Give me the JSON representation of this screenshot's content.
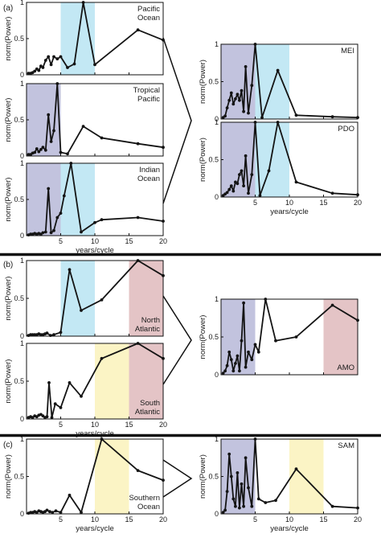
{
  "figure": {
    "panel_labels": [
      "(a)",
      "(b)",
      "(c)"
    ],
    "x_axis_title": "years/cycle",
    "y_axis_title": "norm(Power)",
    "x_ticks": [
      5,
      10,
      15,
      20
    ],
    "y_ticks": [
      0,
      0.5,
      1
    ],
    "band_colors": {
      "interannual": "#c2c3de",
      "decadal": "#c3e8f4",
      "bidecadal_yellow": "#fbf4c5",
      "multidecadal": "#e4c4c6"
    },
    "line_color": "#141414"
  },
  "chart_data": [
    {
      "id": "pacific-ocean",
      "type": "line",
      "panel_label": "(a)",
      "annotation": [
        "Pacific",
        "Ocean"
      ],
      "annotation_pos": "top",
      "xlim": [
        0,
        20
      ],
      "ylim": [
        0,
        1
      ],
      "show_x_labels": false,
      "bands": [
        {
          "range": [
            5,
            10
          ],
          "color": "decadal"
        }
      ],
      "x": [
        0.3,
        0.6,
        0.9,
        1.2,
        1.5,
        1.8,
        2.1,
        2.4,
        2.8,
        3.2,
        3.6,
        4.0,
        4.5,
        5.0,
        6.0,
        7.0,
        8.3,
        10.0,
        16.3,
        20.0
      ],
      "y": [
        0.02,
        0.02,
        0.03,
        0.05,
        0.08,
        0.06,
        0.12,
        0.1,
        0.2,
        0.25,
        0.14,
        0.25,
        0.22,
        0.25,
        0.1,
        0.15,
        1.0,
        0.14,
        0.62,
        0.48
      ]
    },
    {
      "id": "tropical-pacific",
      "type": "line",
      "annotation": [
        "Tropical",
        "Pacific"
      ],
      "annotation_pos": "top",
      "xlim": [
        0,
        20
      ],
      "ylim": [
        0,
        1
      ],
      "show_x_labels": false,
      "bands": [
        {
          "range": [
            0,
            5
          ],
          "color": "interannual"
        }
      ],
      "x": [
        0.3,
        0.6,
        0.9,
        1.2,
        1.5,
        1.8,
        2.1,
        2.4,
        2.8,
        3.2,
        3.6,
        4.0,
        4.5,
        5.0,
        6.0,
        8.3,
        11.0,
        16.3,
        20.0
      ],
      "y": [
        0.02,
        0.02,
        0.04,
        0.05,
        0.1,
        0.06,
        0.09,
        0.12,
        0.08,
        0.57,
        0.2,
        0.35,
        1.0,
        0.05,
        0.03,
        0.41,
        0.25,
        0.17,
        0.12
      ]
    },
    {
      "id": "indian-ocean",
      "type": "line",
      "annotation": [
        "Indian",
        "Ocean"
      ],
      "annotation_pos": "top",
      "xlim": [
        0,
        20
      ],
      "ylim": [
        0,
        1
      ],
      "show_x_labels": true,
      "bands": [
        {
          "range": [
            0,
            5
          ],
          "color": "interannual"
        },
        {
          "range": [
            5,
            10
          ],
          "color": "decadal"
        }
      ],
      "x": [
        0.3,
        0.6,
        0.9,
        1.2,
        1.5,
        1.8,
        2.1,
        2.4,
        2.8,
        3.2,
        3.6,
        4.0,
        4.5,
        5.0,
        5.5,
        6.5,
        8.0,
        10.0,
        11.0,
        16.3,
        20.0
      ],
      "y": [
        0.01,
        0.02,
        0.02,
        0.03,
        0.02,
        0.03,
        0.02,
        0.04,
        0.05,
        0.65,
        0.04,
        0.07,
        0.25,
        0.31,
        0.55,
        1.0,
        0.05,
        0.18,
        0.22,
        0.25,
        0.2
      ]
    },
    {
      "id": "mei",
      "type": "line",
      "annotation": [
        "MEI"
      ],
      "annotation_pos": "top",
      "xlim": [
        0,
        20
      ],
      "ylim": [
        0,
        1
      ],
      "show_x_labels": false,
      "bands": [
        {
          "range": [
            0,
            5
          ],
          "color": "interannual"
        },
        {
          "range": [
            5,
            10
          ],
          "color": "decadal"
        }
      ],
      "x": [
        0.3,
        0.6,
        0.9,
        1.2,
        1.5,
        1.8,
        2.1,
        2.4,
        2.7,
        3.0,
        3.3,
        3.6,
        4.0,
        4.5,
        5.0,
        6.0,
        8.3,
        11.0,
        16.3,
        20.0
      ],
      "y": [
        0.02,
        0.04,
        0.15,
        0.25,
        0.35,
        0.2,
        0.27,
        0.33,
        0.25,
        0.38,
        0.1,
        0.7,
        0.08,
        0.45,
        1.0,
        0.02,
        0.65,
        0.05,
        0.03,
        0.02
      ]
    },
    {
      "id": "pdo",
      "type": "line",
      "annotation": [
        "PDO"
      ],
      "annotation_pos": "top",
      "xlim": [
        0,
        20
      ],
      "ylim": [
        0,
        1
      ],
      "show_x_labels": true,
      "bands": [
        {
          "range": [
            0,
            5
          ],
          "color": "interannual"
        },
        {
          "range": [
            5,
            10
          ],
          "color": "decadal"
        }
      ],
      "x": [
        0.3,
        0.6,
        0.9,
        1.2,
        1.5,
        1.8,
        2.1,
        2.4,
        2.7,
        3.0,
        3.3,
        3.6,
        4.0,
        4.5,
        5.0,
        5.7,
        7.0,
        8.3,
        11.0,
        16.3,
        20.0
      ],
      "y": [
        0.02,
        0.04,
        0.06,
        0.1,
        0.15,
        0.08,
        0.2,
        0.18,
        0.3,
        0.35,
        0.15,
        0.55,
        0.05,
        0.3,
        1.0,
        0.02,
        0.35,
        1.0,
        0.2,
        0.05,
        0.03
      ]
    },
    {
      "id": "north-atlantic",
      "type": "line",
      "panel_label": "(b)",
      "annotation": [
        "North",
        "Atlantic"
      ],
      "annotation_pos": "bottom",
      "xlim": [
        0,
        20
      ],
      "ylim": [
        0,
        1
      ],
      "show_x_labels": false,
      "bands": [
        {
          "range": [
            5,
            10
          ],
          "color": "decadal"
        },
        {
          "range": [
            15,
            20
          ],
          "color": "multidecadal"
        }
      ],
      "x": [
        0.3,
        0.6,
        0.9,
        1.2,
        1.5,
        1.8,
        2.1,
        2.4,
        2.7,
        3.0,
        3.5,
        4.0,
        5.0,
        6.3,
        8.0,
        11.0,
        16.3,
        20.0
      ],
      "y": [
        0.01,
        0.02,
        0.02,
        0.02,
        0.02,
        0.03,
        0.02,
        0.02,
        0.03,
        0.04,
        0.01,
        0.02,
        0.05,
        0.88,
        0.34,
        0.48,
        1.0,
        0.8
      ]
    },
    {
      "id": "south-atlantic",
      "type": "line",
      "annotation": [
        "South",
        "Atlantic"
      ],
      "annotation_pos": "bottom",
      "xlim": [
        0,
        20
      ],
      "ylim": [
        0,
        1
      ],
      "show_x_labels": true,
      "bands": [
        {
          "range": [
            10,
            15
          ],
          "color": "bidecadal_yellow"
        },
        {
          "range": [
            15,
            20
          ],
          "color": "multidecadal"
        }
      ],
      "x": [
        0.3,
        0.6,
        0.9,
        1.2,
        1.5,
        1.8,
        2.1,
        2.4,
        2.7,
        3.0,
        3.3,
        3.7,
        4.2,
        5.0,
        6.3,
        8.0,
        11.0,
        16.3,
        20.0
      ],
      "y": [
        0.02,
        0.03,
        0.02,
        0.04,
        0.03,
        0.05,
        0.06,
        0.04,
        0.02,
        0.03,
        0.48,
        0.02,
        0.2,
        0.15,
        0.48,
        0.3,
        0.8,
        1.0,
        0.8
      ]
    },
    {
      "id": "amo",
      "type": "line",
      "annotation": [
        "AMO"
      ],
      "annotation_pos": "bottom",
      "xlim": [
        0,
        20
      ],
      "ylim": [
        0,
        1
      ],
      "show_x_labels": false,
      "bands": [
        {
          "range": [
            0,
            5
          ],
          "color": "interannual"
        },
        {
          "range": [
            15,
            20
          ],
          "color": "multidecadal"
        }
      ],
      "x": [
        0.3,
        0.6,
        0.9,
        1.2,
        1.5,
        1.8,
        2.1,
        2.4,
        2.7,
        3.0,
        3.3,
        3.6,
        4.0,
        4.5,
        5.0,
        5.5,
        6.5,
        8.0,
        11.0,
        16.3,
        20.0
      ],
      "y": [
        0.02,
        0.05,
        0.12,
        0.3,
        0.2,
        0.05,
        0.15,
        0.25,
        0.05,
        0.45,
        0.95,
        0.1,
        0.3,
        0.2,
        0.4,
        0.3,
        1.0,
        0.45,
        0.5,
        0.92,
        0.72
      ]
    },
    {
      "id": "southern-ocean",
      "type": "line",
      "panel_label": "(c)",
      "annotation": [
        "Southern",
        "Ocean"
      ],
      "annotation_pos": "bottom",
      "xlim": [
        0,
        20
      ],
      "ylim": [
        0,
        1
      ],
      "show_x_labels": true,
      "bands": [
        {
          "range": [
            10,
            15
          ],
          "color": "bidecadal_yellow"
        }
      ],
      "x": [
        0.3,
        0.6,
        0.9,
        1.2,
        1.5,
        1.8,
        2.1,
        2.4,
        2.7,
        3.0,
        3.4,
        3.8,
        4.3,
        5.0,
        6.3,
        8.0,
        11.0,
        16.3,
        20.0
      ],
      "y": [
        0.01,
        0.02,
        0.02,
        0.03,
        0.02,
        0.04,
        0.03,
        0.02,
        0.03,
        0.05,
        0.03,
        0.02,
        0.04,
        0.02,
        0.25,
        0.02,
        1.0,
        0.58,
        0.45
      ]
    },
    {
      "id": "sam",
      "type": "line",
      "annotation": [
        "SAM"
      ],
      "annotation_pos": "top",
      "xlim": [
        0,
        20
      ],
      "ylim": [
        0,
        1
      ],
      "show_x_labels": true,
      "bands": [
        {
          "range": [
            0,
            5
          ],
          "color": "interannual"
        },
        {
          "range": [
            10,
            15
          ],
          "color": "bidecadal_yellow"
        }
      ],
      "x": [
        0.3,
        0.6,
        0.9,
        1.2,
        1.5,
        1.8,
        2.1,
        2.4,
        2.7,
        3.0,
        3.3,
        3.6,
        4.0,
        4.5,
        5.0,
        5.5,
        6.5,
        8.0,
        11.0,
        16.3,
        20.0
      ],
      "y": [
        0.02,
        0.05,
        0.3,
        0.8,
        0.5,
        0.2,
        0.1,
        0.55,
        0.08,
        0.4,
        0.1,
        0.75,
        0.35,
        0.1,
        1.0,
        0.2,
        0.15,
        0.18,
        0.6,
        0.1,
        0.08
      ]
    }
  ]
}
